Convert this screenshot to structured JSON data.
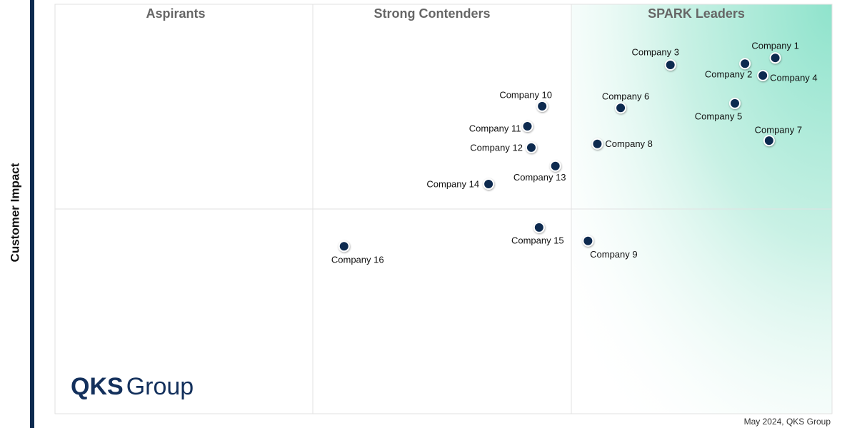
{
  "chart_data": {
    "type": "scatter",
    "quadrant_titles": [
      "Aspirants",
      "Strong Contenders",
      "SPARK Leaders"
    ],
    "ylabel": "Customer Impact",
    "note": "May 2024, QKS Group",
    "logo": {
      "bold": "QKS",
      "regular": "Group"
    },
    "point_labels": [
      "Company 1",
      "Company 2",
      "Company 3",
      "Company 4",
      "Company 5",
      "Company 6",
      "Company 7",
      "Company 8",
      "Company 9",
      "Company 10",
      "Company 11",
      "Company 12",
      "Company 13",
      "Company 14",
      "Company 15",
      "Company 16"
    ],
    "x": [
      92.7,
      88.8,
      79.2,
      91.1,
      87.5,
      72.8,
      91.9,
      69.8,
      68.6,
      62.7,
      60.8,
      61.3,
      64.4,
      55.8,
      62.3,
      37.2
    ],
    "values": [
      86.9,
      85.5,
      85.2,
      82.6,
      75.8,
      74.7,
      66.7,
      65.9,
      42.2,
      75.1,
      70.2,
      65.0,
      60.5,
      56.1,
      45.5,
      40.9
    ],
    "color": "#0d2a4f",
    "xlim": [
      0,
      100
    ],
    "ylim": [
      0,
      100
    ]
  }
}
